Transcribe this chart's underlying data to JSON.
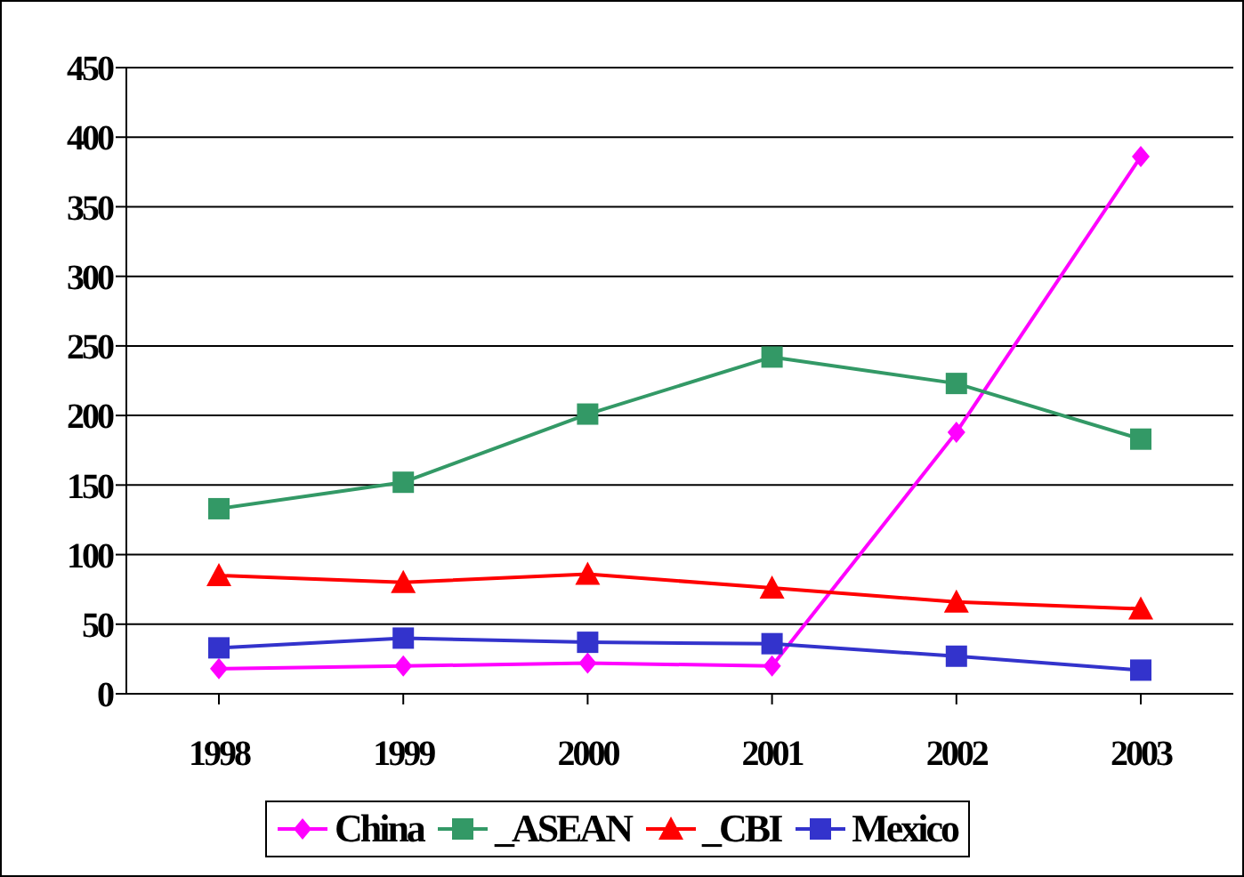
{
  "chart_data": {
    "type": "line",
    "categories": [
      "1998",
      "1999",
      "2000",
      "2001",
      "2002",
      "2003"
    ],
    "series": [
      {
        "name": "China",
        "color": "#ff00ff",
        "marker": "diamond",
        "values": [
          18,
          20,
          22,
          20,
          188,
          386
        ]
      },
      {
        "name": "_ASEAN",
        "color": "#339966",
        "marker": "square",
        "values": [
          133,
          152,
          201,
          242,
          223,
          183
        ]
      },
      {
        "name": "_CBI",
        "color": "#ff0000",
        "marker": "triangle",
        "values": [
          85,
          80,
          86,
          76,
          66,
          61
        ]
      },
      {
        "name": "Mexico",
        "color": "#3333cc",
        "marker": "square",
        "values": [
          33,
          40,
          37,
          36,
          27,
          17
        ]
      }
    ],
    "ylim": [
      0,
      450
    ],
    "yticks": [
      0,
      50,
      100,
      150,
      200,
      250,
      300,
      350,
      400,
      450
    ],
    "grid": "y",
    "legend": "bottom"
  }
}
